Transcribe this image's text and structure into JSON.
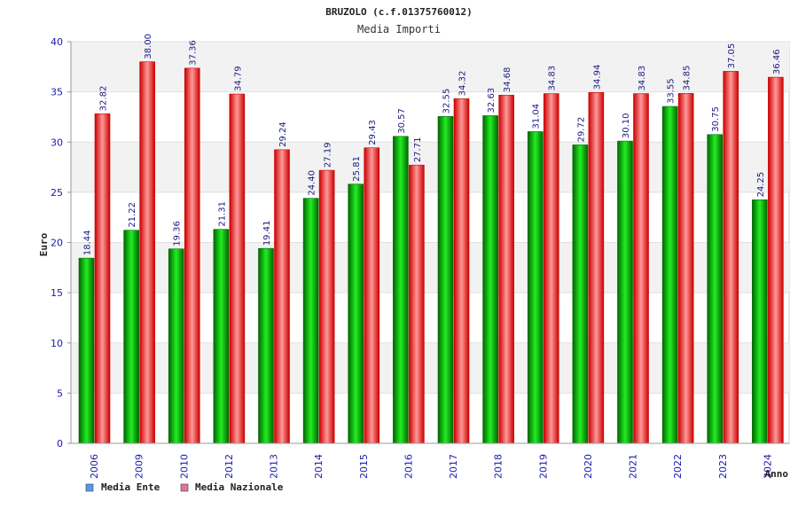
{
  "colors": {
    "ente_dark": "#006600",
    "ente_light": "#22ee22",
    "naz_dark": "#cc0000",
    "naz_light": "#ff9999",
    "legend_ente": "#5599ee",
    "legend_naz": "#dd7799",
    "grid_band": "#f2f2f2",
    "tick_text": "#1a1ab0"
  },
  "chart_data": {
    "type": "bar",
    "title": "BRUZOLO (c.f.01375760012)",
    "subtitle": "Media Importi",
    "xlabel": "Anno",
    "ylabel": "Euro",
    "ylim": [
      0,
      40
    ],
    "yticks": [
      0,
      5,
      10,
      15,
      20,
      25,
      30,
      35,
      40
    ],
    "categories": [
      "2006",
      "2009",
      "2010",
      "2012",
      "2013",
      "2014",
      "2015",
      "2016",
      "2017",
      "2018",
      "2019",
      "2020",
      "2021",
      "2022",
      "2023",
      "2024"
    ],
    "series": [
      {
        "name": "Media Ente",
        "values": [
          18.44,
          21.22,
          19.36,
          21.31,
          19.41,
          24.4,
          25.81,
          30.57,
          32.55,
          32.63,
          31.04,
          29.72,
          30.1,
          33.55,
          30.75,
          24.25
        ],
        "labels": [
          "18.44",
          "21.22",
          "19.36",
          "21.31",
          "19.41",
          "24.40",
          "25.81",
          "30.57",
          "32.55",
          "32.63",
          "31.04",
          "29.72",
          "30.10",
          "33.55",
          "30.75",
          "24.25"
        ]
      },
      {
        "name": "Media Nazionale",
        "values": [
          32.82,
          38.0,
          37.36,
          34.79,
          29.24,
          27.19,
          29.43,
          27.71,
          34.32,
          34.68,
          34.83,
          34.94,
          34.83,
          34.85,
          37.05,
          36.46
        ],
        "labels": [
          "32.82",
          "38.00",
          "37.36",
          "34.79",
          "29.24",
          "27.19",
          "29.43",
          "27.71",
          "34.32",
          "34.68",
          "34.83",
          "34.94",
          "34.83",
          "34.85",
          "37.05",
          "36.46"
        ]
      }
    ],
    "legend": [
      "Media Ente",
      "Media Nazionale"
    ]
  }
}
